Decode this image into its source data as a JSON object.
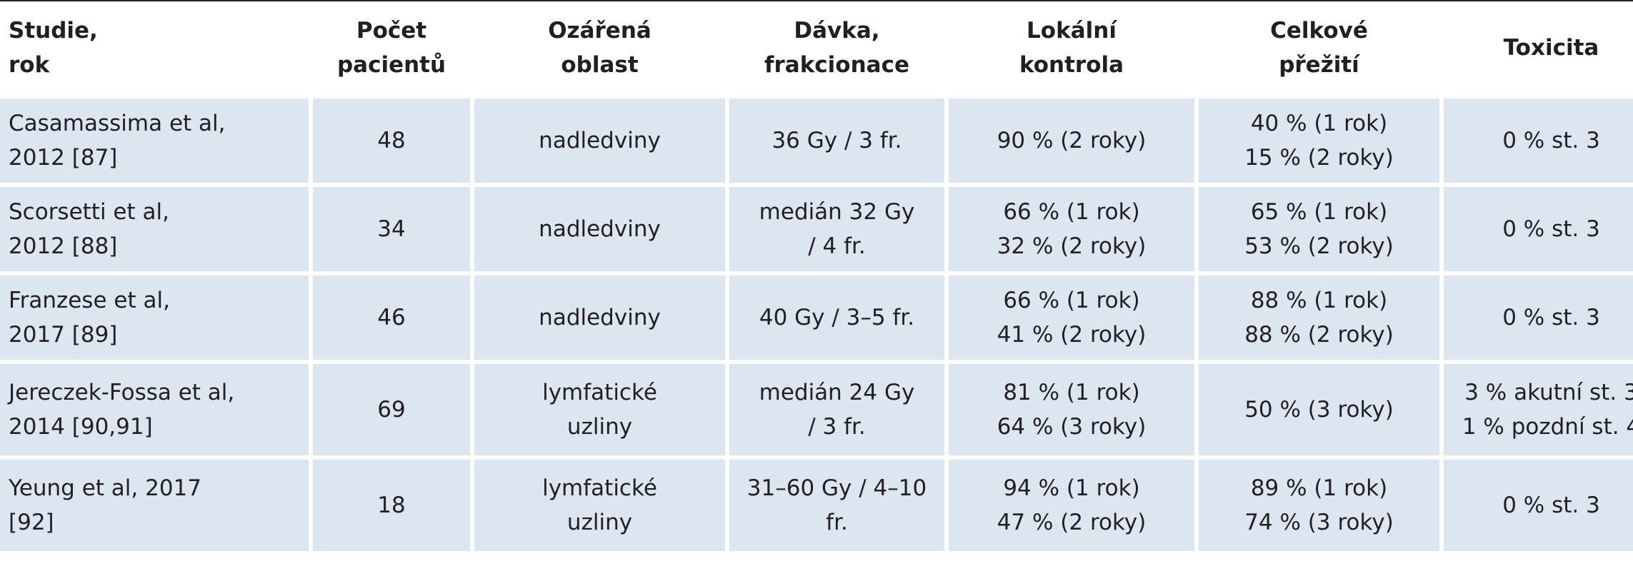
{
  "table": {
    "header": [
      [
        "Studie,",
        "rok"
      ],
      [
        "Počet",
        "pacientů"
      ],
      [
        "Ozářená",
        "oblast"
      ],
      [
        "Dávka,",
        "frakcionace"
      ],
      [
        "Lokální",
        "kontrola"
      ],
      [
        "Celkové",
        "přežití"
      ],
      [
        "Toxicita"
      ]
    ],
    "rows": [
      [
        [
          "Casamassima et al,",
          "2012 [87]"
        ],
        [
          "48"
        ],
        [
          "nadledviny"
        ],
        [
          "36 Gy / 3 fr."
        ],
        [
          "90 % (2 roky)"
        ],
        [
          "40 % (1 rok)",
          "15 % (2 roky)"
        ],
        [
          "0 % st. 3"
        ]
      ],
      [
        [
          "Scorsetti et al,",
          "2012 [88]"
        ],
        [
          "34"
        ],
        [
          "nadledviny"
        ],
        [
          "medián 32 Gy",
          "/ 4 fr."
        ],
        [
          "66 % (1 rok)",
          "32 % (2 roky)"
        ],
        [
          "65 % (1 rok)",
          "53 % (2 roky)"
        ],
        [
          "0 % st. 3"
        ]
      ],
      [
        [
          "Franzese et al,",
          "2017 [89]"
        ],
        [
          "46"
        ],
        [
          "nadledviny"
        ],
        [
          "40 Gy / 3–5 fr."
        ],
        [
          "66 % (1 rok)",
          "41 % (2 roky)"
        ],
        [
          "88 % (1 rok)",
          "88 % (2 roky)"
        ],
        [
          "0 % st. 3"
        ]
      ],
      [
        [
          "Jereczek-Fossa et al,",
          "2014 [90,91]"
        ],
        [
          "69"
        ],
        [
          "lymfatické",
          "uzliny"
        ],
        [
          "medián 24 Gy",
          "/ 3 fr."
        ],
        [
          "81 % (1 rok)",
          "64 % (3 roky)"
        ],
        [
          "50 % (3 roky)"
        ],
        [
          "3 % akutní st. 3",
          "1 % pozdní st. 4"
        ]
      ],
      [
        [
          "Yeung et al, 2017",
          "[92]"
        ],
        [
          "18"
        ],
        [
          "lymfatické",
          "uzliny"
        ],
        [
          "31–60 Gy / 4–10",
          "fr."
        ],
        [
          "94 % (1 rok)",
          "47 % (2 roky)"
        ],
        [
          "89 % (1 rok)",
          "74 % (3 roky)"
        ],
        [
          "0 % st. 3"
        ]
      ]
    ]
  }
}
